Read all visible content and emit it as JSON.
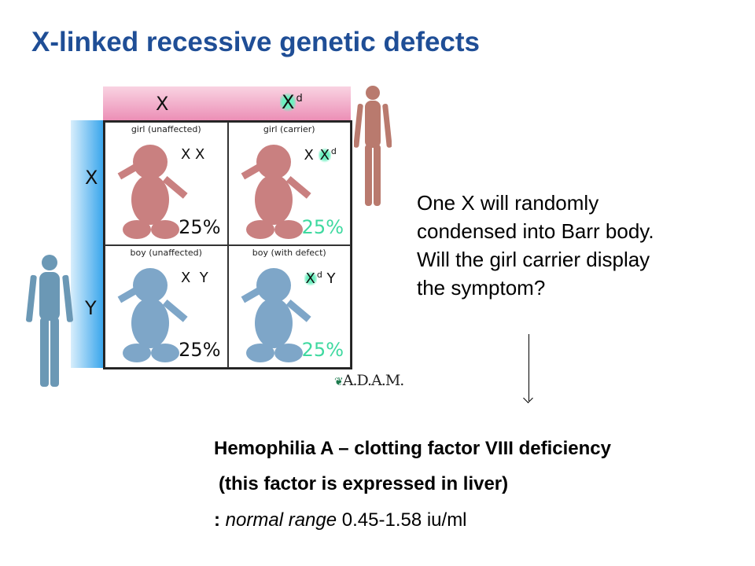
{
  "slide": {
    "title": "X-linked recessive genetic defects",
    "punnett": {
      "mother_alleles": [
        "X",
        "X",
        "d"
      ],
      "father_alleles": [
        "X",
        "Y"
      ],
      "cells": [
        {
          "label": "girl (unaffected)",
          "genotype": "X X",
          "percent": "25%",
          "skin": "#c97f7f"
        },
        {
          "label": "girl (carrier)",
          "genotype_base": "X ",
          "genotype_allele": "X",
          "genotype_sup": "d",
          "percent": "25%",
          "skin": "#c97f7f"
        },
        {
          "label": "boy (unaffected)",
          "genotype": "X  Y",
          "percent": "25%",
          "skin": "#7fa7c9"
        },
        {
          "label": "boy (with defect)",
          "genotype_allele": "X",
          "genotype_sup": "d",
          "genotype_tail": " Y",
          "percent": "25%",
          "skin": "#7fa7c9"
        }
      ],
      "credit": "A.D.A.M.",
      "carrier_color": "#3fd9a0"
    },
    "question": [
      "One X will randomly",
      "condensed into Barr body.",
      "Will the girl carrier display",
      "the symptom?"
    ],
    "bottom": {
      "line1": "Hemophilia A – clotting factor VIII deficiency",
      "line2": "(this factor is expressed in liver)",
      "line3_prefix": ": ",
      "line3_italic": "normal range",
      "line3_value": " 0.45-1.58 iu/ml"
    }
  }
}
